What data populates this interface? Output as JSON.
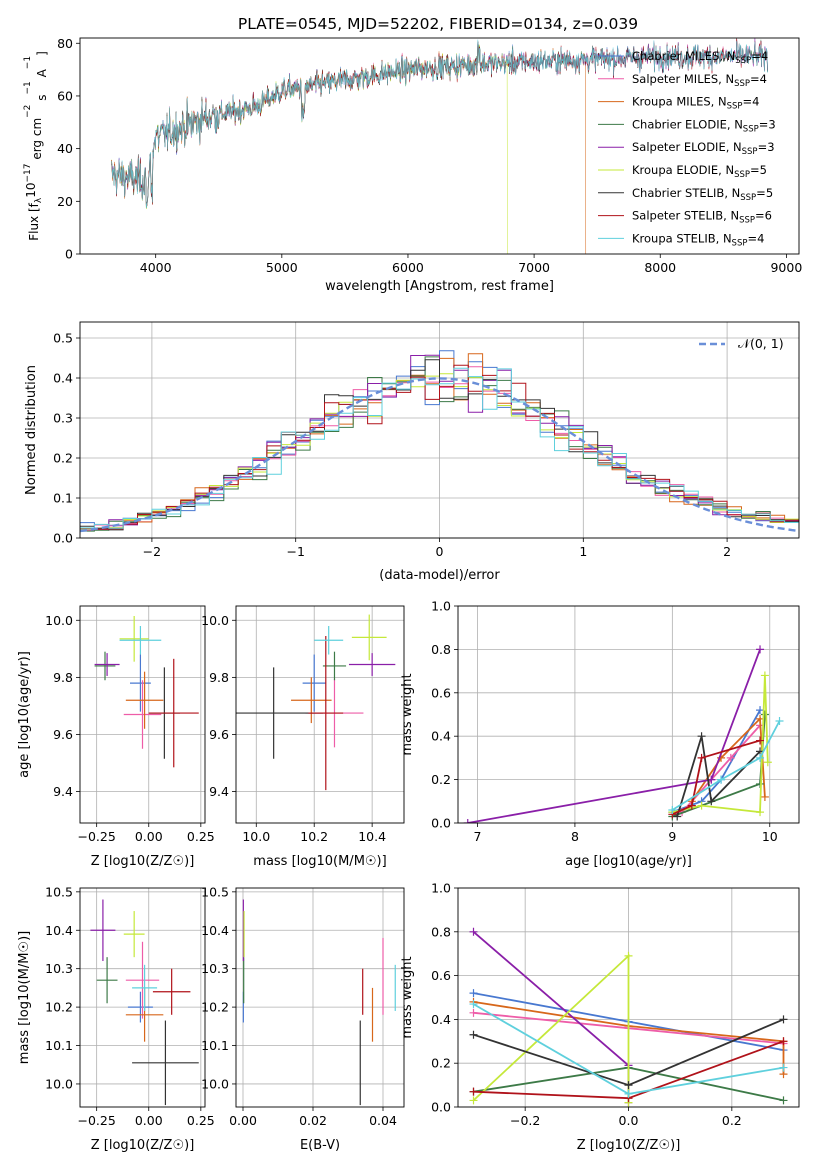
{
  "title": "PLATE=0545, MJD=52202, FIBERID=0134, z=0.039",
  "models": [
    {
      "name": "Chabrier MILES",
      "nssp": "4",
      "color": "#4878d0"
    },
    {
      "name": "Salpeter MILES",
      "nssp": "4",
      "color": "#ee5da8"
    },
    {
      "name": "Kroupa MILES",
      "nssp": "4",
      "color": "#d7671b"
    },
    {
      "name": "Chabrier ELODIE",
      "nssp": "3",
      "color": "#3d7a47"
    },
    {
      "name": "Salpeter ELODIE",
      "nssp": "3",
      "color": "#8a1fa8"
    },
    {
      "name": "Kroupa ELODIE",
      "nssp": "5",
      "color": "#c5e83a"
    },
    {
      "name": "Chabrier STELIB",
      "nssp": "5",
      "color": "#333333"
    },
    {
      "name": "Salpeter STELIB",
      "nssp": "6",
      "color": "#b0121a"
    },
    {
      "name": "Kroupa STELIB",
      "nssp": "4",
      "color": "#5fd0dd"
    }
  ],
  "chart_data": [
    {
      "id": "spectrum",
      "type": "line",
      "xlabel": "wavelength [Angstrom, rest frame]",
      "ylabel": "Flux [f_λ 10^-17 erg cm^-2 s^-1 A^-1]",
      "ylabel_parts": {
        "a": "Flux [f",
        "b": "λ",
        "c": "10",
        "d": "−17",
        "e": " erg cm",
        "f": "−2",
        "g": " s",
        "h": "−1",
        "i": " A",
        "j": "−1",
        "k": "]"
      },
      "legend_sub": "SSP",
      "legend_prefix": "N",
      "xlim": [
        3400,
        9100
      ],
      "ylim": [
        0,
        82
      ],
      "xticks": [
        "4000",
        "5000",
        "6000",
        "7000",
        "8000",
        "9000"
      ],
      "yticks": [
        "0",
        "20",
        "40",
        "60",
        "80"
      ],
      "grid": false,
      "legend": "upper-right",
      "continuum": [
        [
          3650,
          30
        ],
        [
          3900,
          28
        ],
        [
          4000,
          44
        ],
        [
          4400,
          52
        ],
        [
          4800,
          56
        ],
        [
          5000,
          62
        ],
        [
          5500,
          66
        ],
        [
          6000,
          70
        ],
        [
          6500,
          72
        ],
        [
          7000,
          73
        ],
        [
          7500,
          74
        ],
        [
          8000,
          75
        ],
        [
          8500,
          75
        ],
        [
          8850,
          75
        ]
      ],
      "dropouts": [
        {
          "model": "Kroupa ELODIE",
          "x": 6790
        },
        {
          "model": "Kroupa MILES",
          "x": 7410
        }
      ]
    },
    {
      "id": "residuals",
      "type": "histogram",
      "xlabel": "(data-model)/error",
      "ylabel": "Normed distribution",
      "xlim": [
        -2.5,
        2.5
      ],
      "ylim": [
        0,
        0.54
      ],
      "xticks": [
        "−2",
        "−1",
        "0",
        "1",
        "2"
      ],
      "yticks": [
        "0.0",
        "0.1",
        "0.2",
        "0.3",
        "0.4",
        "0.5"
      ],
      "grid": true,
      "legend": "upper-right",
      "reference": {
        "label": "𝒩(0, 1)",
        "mean": 0,
        "sigma": 1,
        "color": "#6a8fd8"
      },
      "bin_width": 0.1
    },
    {
      "id": "age-vs-z",
      "type": "errorbar",
      "xlabel": "Z [log10(Z/Z☉)]",
      "ylabel": "age [log10(age/yr)]",
      "xlim": [
        -0.33,
        0.27
      ],
      "ylim": [
        9.29,
        10.05
      ],
      "xticks": [
        "−0.25",
        "0.00",
        "0.25"
      ],
      "yticks": [
        "9.4",
        "9.6",
        "9.8",
        "10.0"
      ],
      "grid": true,
      "points": [
        {
          "model": "Chabrier MILES",
          "x": -0.04,
          "xerr": 0.05,
          "y": 9.78,
          "yerr": 0.1
        },
        {
          "model": "Salpeter MILES",
          "x": -0.03,
          "xerr": 0.09,
          "y": 9.67,
          "yerr": 0.12
        },
        {
          "model": "Kroupa MILES",
          "x": -0.02,
          "xerr": 0.09,
          "y": 9.72,
          "yerr": 0.1
        },
        {
          "model": "Chabrier ELODIE",
          "x": -0.21,
          "xerr": 0.05,
          "y": 9.84,
          "yerr": 0.05
        },
        {
          "model": "Salpeter ELODIE",
          "x": -0.2,
          "xerr": 0.06,
          "y": 9.845,
          "yerr": 0.04
        },
        {
          "model": "Kroupa ELODIE",
          "x": -0.07,
          "xerr": 0.07,
          "y": 9.935,
          "yerr": 0.08
        },
        {
          "model": "Chabrier STELIB",
          "x": 0.075,
          "xerr": 0.075,
          "y": 9.675,
          "yerr": 0.16
        },
        {
          "model": "Salpeter STELIB",
          "x": 0.12,
          "xerr": 0.12,
          "y": 9.675,
          "yerr": 0.19
        },
        {
          "model": "Kroupa STELIB",
          "x": -0.04,
          "xerr": 0.1,
          "y": 9.93,
          "yerr": 0.05
        }
      ]
    },
    {
      "id": "age-vs-mass",
      "type": "errorbar",
      "xlabel": "mass [log10(M/M☉)]",
      "ylabel": "",
      "xlim": [
        9.93,
        10.51
      ],
      "ylim": [
        9.29,
        10.05
      ],
      "xticks": [
        "10.0",
        "10.2",
        "10.4"
      ],
      "yticks": [
        "9.4",
        "9.6",
        "9.8",
        "10.0"
      ],
      "grid": true,
      "points": [
        {
          "model": "Chabrier MILES",
          "x": 10.2,
          "xerr": 0.04,
          "y": 9.78,
          "yerr": 0.1
        },
        {
          "model": "Salpeter MILES",
          "x": 10.27,
          "xerr": 0.1,
          "y": 9.675,
          "yerr": 0.12
        },
        {
          "model": "Kroupa MILES",
          "x": 10.19,
          "xerr": 0.07,
          "y": 9.72,
          "yerr": 0.08
        },
        {
          "model": "Chabrier ELODIE",
          "x": 10.27,
          "xerr": 0.04,
          "y": 9.84,
          "yerr": 0.05
        },
        {
          "model": "Salpeter ELODIE",
          "x": 10.4,
          "xerr": 0.08,
          "y": 9.845,
          "yerr": 0.04
        },
        {
          "model": "Kroupa ELODIE",
          "x": 10.39,
          "xerr": 0.06,
          "y": 9.94,
          "yerr": 0.08
        },
        {
          "model": "Chabrier STELIB",
          "x": 10.06,
          "xerr": 0.17,
          "y": 9.675,
          "yerr": 0.16
        },
        {
          "model": "Salpeter STELIB",
          "x": 10.24,
          "xerr": 0.06,
          "y": 9.675,
          "yerr": 0.27
        },
        {
          "model": "Kroupa STELIB",
          "x": 10.25,
          "xerr": 0.05,
          "y": 9.93,
          "yerr": 0.05
        }
      ]
    },
    {
      "id": "weight-vs-age",
      "type": "line",
      "xlabel": "age [log10(age/yr)]",
      "ylabel": "mass weight",
      "xlim": [
        6.8,
        10.3
      ],
      "ylim": [
        0,
        1
      ],
      "xticks": [
        "7",
        "8",
        "9",
        "10"
      ],
      "yticks": [
        "0.0",
        "0.2",
        "0.4",
        "0.6",
        "0.8",
        "1.0"
      ],
      "grid": true,
      "series": [
        {
          "model": "Chabrier MILES",
          "points": [
            [
              9.0,
              0.05
            ],
            [
              9.3,
              0.1
            ],
            [
              9.5,
              0.2
            ],
            [
              9.9,
              0.52
            ]
          ]
        },
        {
          "model": "Salpeter MILES",
          "points": [
            [
              9.1,
              0.05
            ],
            [
              9.4,
              0.2
            ],
            [
              9.6,
              0.3
            ],
            [
              9.9,
              0.45
            ]
          ]
        },
        {
          "model": "Kroupa MILES",
          "points": [
            [
              9.2,
              0.1
            ],
            [
              9.5,
              0.3
            ],
            [
              9.9,
              0.48
            ],
            [
              9.95,
              0.12
            ]
          ]
        },
        {
          "model": "Chabrier ELODIE",
          "points": [
            [
              9.0,
              0.03
            ],
            [
              9.9,
              0.18
            ],
            [
              9.95,
              0.5
            ]
          ]
        },
        {
          "model": "Salpeter ELODIE",
          "points": [
            [
              6.9,
              0.0
            ],
            [
              9.4,
              0.2
            ],
            [
              9.9,
              0.8
            ]
          ]
        },
        {
          "model": "Kroupa ELODIE",
          "points": [
            [
              9.0,
              0.05
            ],
            [
              9.3,
              0.08
            ],
            [
              9.9,
              0.05
            ],
            [
              9.95,
              0.68
            ],
            [
              9.98,
              0.28
            ]
          ]
        },
        {
          "model": "Chabrier STELIB",
          "points": [
            [
              9.05,
              0.03
            ],
            [
              9.3,
              0.4
            ],
            [
              9.4,
              0.1
            ],
            [
              9.9,
              0.33
            ]
          ]
        },
        {
          "model": "Salpeter STELIB",
          "points": [
            [
              9.0,
              0.04
            ],
            [
              9.2,
              0.08
            ],
            [
              9.3,
              0.3
            ],
            [
              9.9,
              0.38
            ]
          ]
        },
        {
          "model": "Kroupa STELIB",
          "points": [
            [
              9.0,
              0.06
            ],
            [
              9.5,
              0.2
            ],
            [
              9.9,
              0.3
            ],
            [
              10.1,
              0.47
            ]
          ]
        }
      ]
    },
    {
      "id": "mass-vs-z",
      "type": "errorbar",
      "xlabel": "Z [log10(Z/Z☉)]",
      "ylabel": "mass [log10(M/M☉)]",
      "xlim": [
        -0.33,
        0.27
      ],
      "ylim": [
        9.94,
        10.51
      ],
      "xticks": [
        "−0.25",
        "0.00",
        "0.25"
      ],
      "yticks": [
        "10.0",
        "10.1",
        "10.2",
        "10.3",
        "10.4",
        "10.5"
      ],
      "grid": true,
      "points": [
        {
          "model": "Chabrier MILES",
          "x": -0.04,
          "xerr": 0.06,
          "y": 10.2,
          "yerr": 0.04
        },
        {
          "model": "Salpeter MILES",
          "x": -0.03,
          "xerr": 0.08,
          "y": 10.27,
          "yerr": 0.1
        },
        {
          "model": "Kroupa MILES",
          "x": -0.02,
          "xerr": 0.09,
          "y": 10.18,
          "yerr": 0.07
        },
        {
          "model": "Chabrier ELODIE",
          "x": -0.2,
          "xerr": 0.05,
          "y": 10.27,
          "yerr": 0.06
        },
        {
          "model": "Salpeter ELODIE",
          "x": -0.22,
          "xerr": 0.06,
          "y": 10.4,
          "yerr": 0.08
        },
        {
          "model": "Kroupa ELODIE",
          "x": -0.07,
          "xerr": 0.05,
          "y": 10.39,
          "yerr": 0.06
        },
        {
          "model": "Chabrier STELIB",
          "x": 0.08,
          "xerr": 0.16,
          "y": 10.055,
          "yerr": 0.11
        },
        {
          "model": "Salpeter STELIB",
          "x": 0.11,
          "xerr": 0.09,
          "y": 10.24,
          "yerr": 0.06
        },
        {
          "model": "Kroupa STELIB",
          "x": -0.02,
          "xerr": 0.06,
          "y": 10.25,
          "yerr": 0.06
        }
      ]
    },
    {
      "id": "mass-vs-ebv",
      "type": "errorbar",
      "xlabel": "E(B-V)",
      "ylabel": "",
      "xlim": [
        -0.002,
        0.046
      ],
      "ylim": [
        9.94,
        10.51
      ],
      "xticks": [
        "0.00",
        "0.02",
        "0.04"
      ],
      "yticks": [
        "10.0",
        "10.1",
        "10.2",
        "10.3",
        "10.4",
        "10.5"
      ],
      "grid": true,
      "points": [
        {
          "model": "Chabrier MILES",
          "x": 0.0001,
          "xerr": 0,
          "y": 10.2,
          "yerr": 0.04
        },
        {
          "model": "Salpeter MILES",
          "x": 0.04,
          "xerr": 0,
          "y": 10.28,
          "yerr": 0.1
        },
        {
          "model": "Kroupa MILES",
          "x": 0.037,
          "xerr": 0,
          "y": 10.18,
          "yerr": 0.07
        },
        {
          "model": "Chabrier ELODIE",
          "x": 0.0002,
          "xerr": 0,
          "y": 10.27,
          "yerr": 0.06
        },
        {
          "model": "Salpeter ELODIE",
          "x": 0.0001,
          "xerr": 0,
          "y": 10.4,
          "yerr": 0.08
        },
        {
          "model": "Kroupa ELODIE",
          "x": 0.0003,
          "xerr": 0,
          "y": 10.39,
          "yerr": 0.06
        },
        {
          "model": "Chabrier STELIB",
          "x": 0.0335,
          "xerr": 0,
          "y": 10.055,
          "yerr": 0.11
        },
        {
          "model": "Salpeter STELIB",
          "x": 0.0342,
          "xerr": 0,
          "y": 10.24,
          "yerr": 0.06
        },
        {
          "model": "Kroupa STELIB",
          "x": 0.0435,
          "xerr": 0,
          "y": 10.25,
          "yerr": 0.06
        }
      ]
    },
    {
      "id": "weight-vs-z",
      "type": "line",
      "xlabel": "Z [log10(Z/Z☉)]",
      "ylabel": "mass weight",
      "xlim": [
        -0.33,
        0.33
      ],
      "ylim": [
        0,
        1
      ],
      "xticks": [
        "−0.2",
        "0.0",
        "0.2"
      ],
      "yticks": [
        "0.0",
        "0.2",
        "0.4",
        "0.6",
        "0.8",
        "1.0"
      ],
      "grid": true,
      "series": [
        {
          "model": "Chabrier MILES",
          "points": [
            [
              -0.3,
              0.52
            ],
            [
              0.0,
              0.39
            ],
            [
              0.3,
              0.26
            ]
          ]
        },
        {
          "model": "Salpeter MILES",
          "points": [
            [
              -0.3,
              0.43
            ],
            [
              0.0,
              0.36
            ],
            [
              0.3,
              0.29
            ]
          ]
        },
        {
          "model": "Kroupa MILES",
          "points": [
            [
              -0.3,
              0.48
            ],
            [
              0.0,
              0.37
            ],
            [
              0.3,
              0.3
            ],
            [
              0.3,
              0.15
            ]
          ]
        },
        {
          "model": "Chabrier ELODIE",
          "points": [
            [
              -0.3,
              0.07
            ],
            [
              0.0,
              0.18
            ],
            [
              0.3,
              0.03
            ]
          ]
        },
        {
          "model": "Salpeter ELODIE",
          "points": [
            [
              -0.3,
              0.8
            ],
            [
              0.0,
              0.19
            ],
            [
              0.0,
              0.02
            ]
          ]
        },
        {
          "model": "Kroupa ELODIE",
          "points": [
            [
              -0.3,
              0.03
            ],
            [
              0.0,
              0.69
            ],
            [
              0.0,
              0.02
            ]
          ]
        },
        {
          "model": "Chabrier STELIB",
          "points": [
            [
              -0.3,
              0.33
            ],
            [
              0.0,
              0.1
            ],
            [
              0.3,
              0.4
            ]
          ]
        },
        {
          "model": "Salpeter STELIB",
          "points": [
            [
              -0.3,
              0.07
            ],
            [
              0.0,
              0.04
            ],
            [
              0.3,
              0.3
            ]
          ]
        },
        {
          "model": "Kroupa STELIB",
          "points": [
            [
              -0.3,
              0.47
            ],
            [
              0.0,
              0.06
            ],
            [
              0.3,
              0.18
            ]
          ]
        }
      ]
    }
  ]
}
